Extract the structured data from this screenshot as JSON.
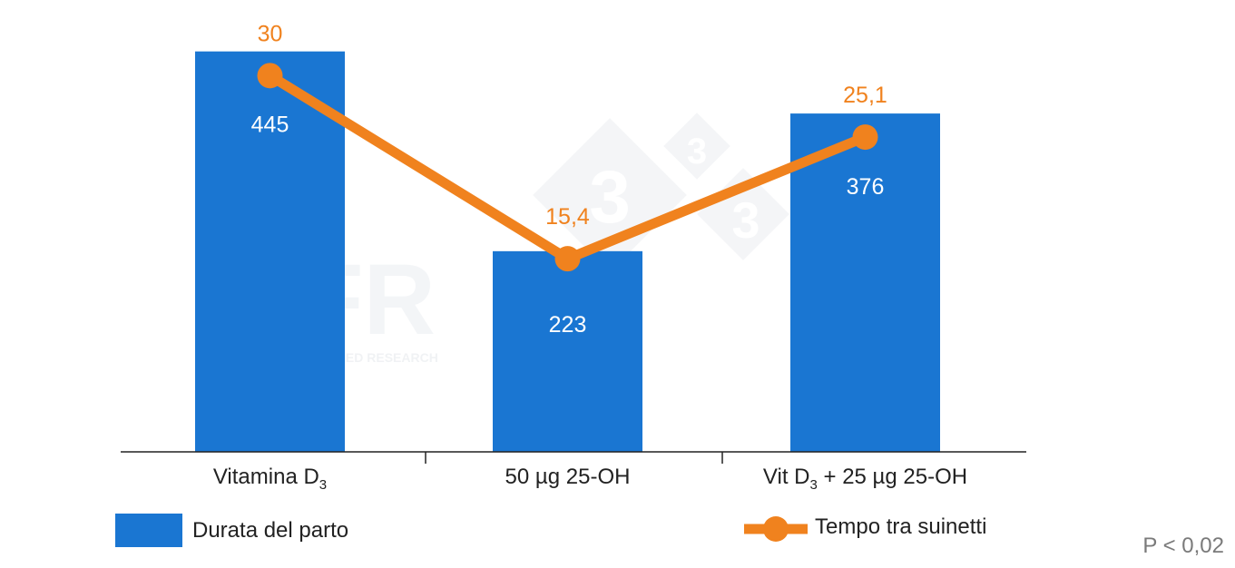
{
  "chart_data": {
    "type": "bar",
    "categories": [
      "Vitamina D3",
      "50 µg 25-OH",
      "Vit D3 + 25 µg 25-OH"
    ],
    "category_parts": [
      {
        "pre": "Vitamina D",
        "sub": "3",
        "post": ""
      },
      {
        "pre": "50 µg 25-OH",
        "sub": "",
        "post": ""
      },
      {
        "pre": "Vit D",
        "sub": "3",
        "post": " + 25 µg 25-OH"
      }
    ],
    "series": [
      {
        "name": "Durata del parto",
        "type": "bar",
        "values": [
          445,
          223,
          376
        ],
        "labels": [
          "445",
          "223",
          "376"
        ],
        "color": "#1a76d2"
      },
      {
        "name": "Tempo tra suinetti",
        "type": "line",
        "values": [
          30,
          15.4,
          25.1
        ],
        "labels": [
          "30",
          "15,4",
          "25,1"
        ],
        "color": "#f0821e"
      }
    ],
    "bar_ylim": [
      0,
      485
    ],
    "line_ylim": [
      0,
      34.8
    ],
    "legend_placement": "bottom",
    "grid": false,
    "annotation": "P < 0,02"
  },
  "watermark": {
    "brand": "SFR",
    "company": "SCHOTHORST FEED RESEARCH",
    "logo_digit": "3"
  }
}
